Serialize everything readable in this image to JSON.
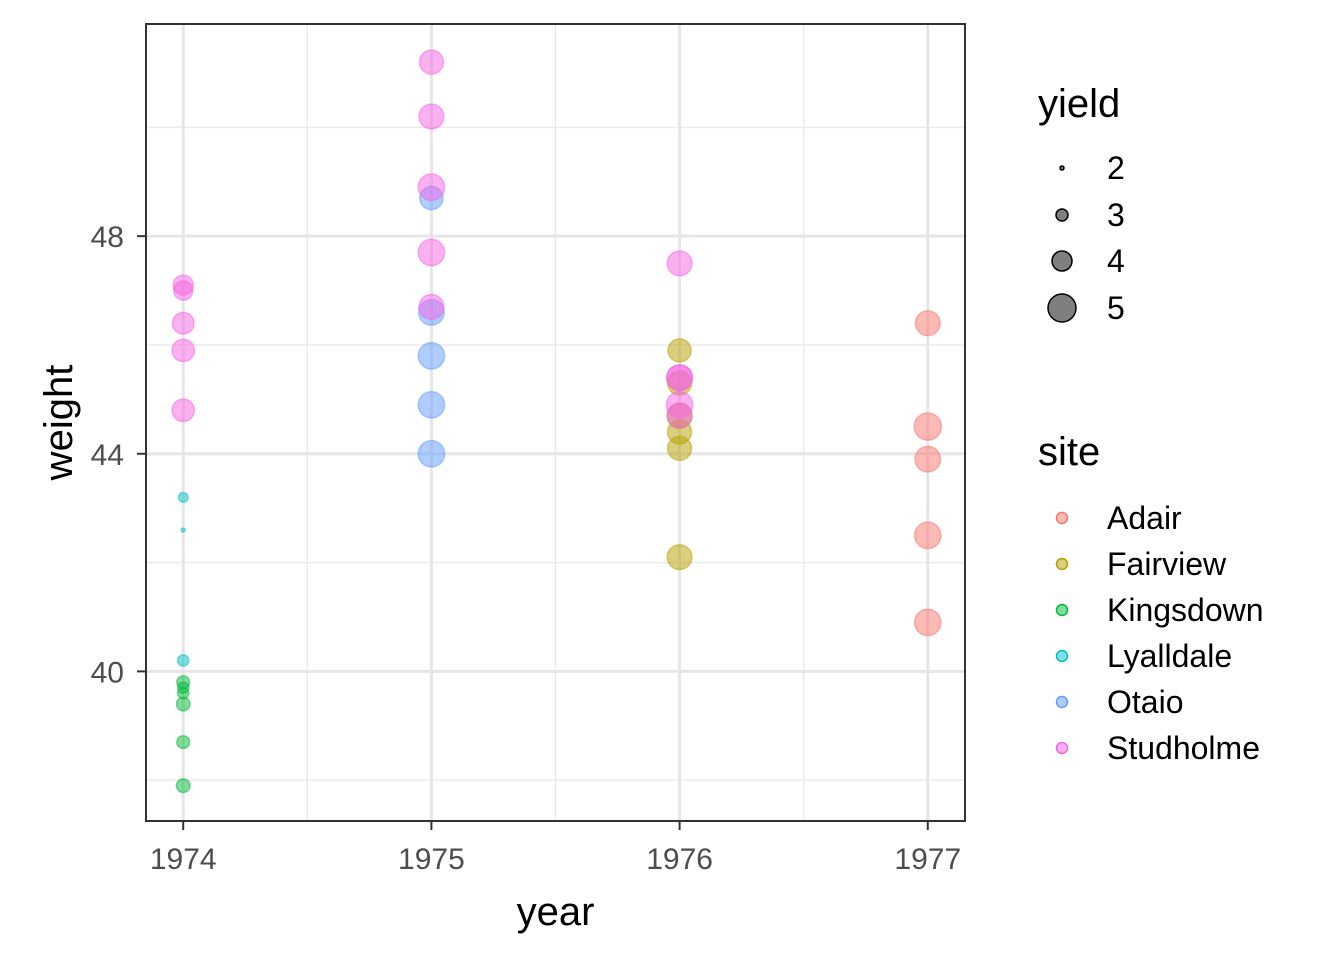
{
  "chart_data": {
    "type": "scatter",
    "xlabel": "year",
    "ylabel": "weight",
    "xlim": [
      1973.85,
      1977.15
    ],
    "ylim": [
      37.25,
      51.9
    ],
    "xticks": [
      1974,
      1975,
      1976,
      1977
    ],
    "yticks": [
      40,
      44,
      48
    ],
    "grid": true,
    "legend_position": "right",
    "size_legend": {
      "title": "yield",
      "values": [
        2,
        3,
        4,
        5
      ]
    },
    "color_legend": {
      "title": "site",
      "entries": [
        {
          "name": "Adair",
          "color": "#F8766D"
        },
        {
          "name": "Fairview",
          "color": "#B79F00"
        },
        {
          "name": "Kingsdown",
          "color": "#00BA38"
        },
        {
          "name": "Lyalldale",
          "color": "#00BFC4"
        },
        {
          "name": "Otaio",
          "color": "#619CFF"
        },
        {
          "name": "Studholme",
          "color": "#F564E3"
        }
      ]
    },
    "series": [
      {
        "name": "Adair",
        "points": [
          {
            "x": 1977,
            "y": 46.4,
            "size": 4.6
          },
          {
            "x": 1977,
            "y": 44.5,
            "size": 4.9
          },
          {
            "x": 1977,
            "y": 43.9,
            "size": 4.7
          },
          {
            "x": 1977,
            "y": 42.5,
            "size": 4.8
          },
          {
            "x": 1977,
            "y": 40.9,
            "size": 4.8
          }
        ]
      },
      {
        "name": "Fairview",
        "points": [
          {
            "x": 1976,
            "y": 45.9,
            "size": 4.4
          },
          {
            "x": 1976,
            "y": 45.3,
            "size": 4.5
          },
          {
            "x": 1976,
            "y": 44.7,
            "size": 4.6
          },
          {
            "x": 1976,
            "y": 44.4,
            "size": 4.5
          },
          {
            "x": 1976,
            "y": 44.1,
            "size": 4.5
          },
          {
            "x": 1976,
            "y": 42.1,
            "size": 4.6
          }
        ]
      },
      {
        "name": "Kingsdown",
        "points": [
          {
            "x": 1974,
            "y": 39.8,
            "size": 3.1
          },
          {
            "x": 1974,
            "y": 39.7,
            "size": 2.9
          },
          {
            "x": 1974,
            "y": 39.6,
            "size": 2.9
          },
          {
            "x": 1974,
            "y": 39.4,
            "size": 3.2
          },
          {
            "x": 1974,
            "y": 38.7,
            "size": 3.1
          },
          {
            "x": 1974,
            "y": 37.9,
            "size": 3.2
          }
        ]
      },
      {
        "name": "Lyalldale",
        "points": [
          {
            "x": 1974,
            "y": 43.2,
            "size": 2.7
          },
          {
            "x": 1974,
            "y": 42.6,
            "size": 2.0
          },
          {
            "x": 1974,
            "y": 40.2,
            "size": 2.9
          }
        ]
      },
      {
        "name": "Otaio",
        "points": [
          {
            "x": 1975,
            "y": 48.7,
            "size": 4.4
          },
          {
            "x": 1975,
            "y": 46.6,
            "size": 4.7
          },
          {
            "x": 1975,
            "y": 45.8,
            "size": 4.8
          },
          {
            "x": 1975,
            "y": 44.9,
            "size": 4.8
          },
          {
            "x": 1975,
            "y": 44.0,
            "size": 4.8
          }
        ]
      },
      {
        "name": "Studholme",
        "points": [
          {
            "x": 1974,
            "y": 47.1,
            "size": 4.0
          },
          {
            "x": 1974,
            "y": 47.0,
            "size": 3.9
          },
          {
            "x": 1974,
            "y": 46.4,
            "size": 4.2
          },
          {
            "x": 1974,
            "y": 45.9,
            "size": 4.3
          },
          {
            "x": 1974,
            "y": 44.8,
            "size": 4.3
          },
          {
            "x": 1975,
            "y": 51.2,
            "size": 4.5
          },
          {
            "x": 1975,
            "y": 50.2,
            "size": 4.6
          },
          {
            "x": 1975,
            "y": 48.9,
            "size": 4.8
          },
          {
            "x": 1975,
            "y": 47.7,
            "size": 4.8
          },
          {
            "x": 1975,
            "y": 46.7,
            "size": 4.6
          },
          {
            "x": 1976,
            "y": 47.5,
            "size": 4.6
          },
          {
            "x": 1976,
            "y": 45.4,
            "size": 4.7
          },
          {
            "x": 1976,
            "y": 45.4,
            "size": 4.7
          },
          {
            "x": 1976,
            "y": 44.9,
            "size": 4.8
          },
          {
            "x": 1976,
            "y": 44.7,
            "size": 4.6
          }
        ]
      }
    ]
  }
}
